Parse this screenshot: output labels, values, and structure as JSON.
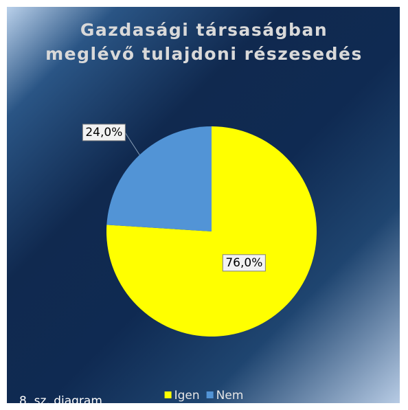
{
  "chart_data": {
    "type": "pie",
    "title": "Gazdasági társaságban meglévő tulajdoni részesedés",
    "categories": [
      "Igen",
      "Nem"
    ],
    "values": [
      76.0,
      24.0
    ],
    "value_labels": [
      "76,0%",
      "24,0%"
    ],
    "colors": [
      "#ffff00",
      "#5294d6"
    ],
    "legend": "bottom",
    "annotation": "8. sz. diagram"
  }
}
